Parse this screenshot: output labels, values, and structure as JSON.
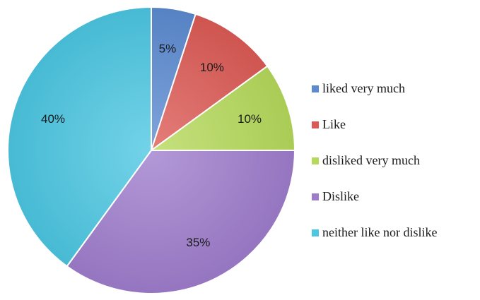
{
  "chart_data": {
    "type": "pie",
    "title": "",
    "start_angle_deg": 90,
    "direction": "clockwise",
    "legend_position": "right",
    "labels": [
      "liked very much",
      "Like",
      "disliked very much",
      "Dislike",
      "neither like nor dislike"
    ],
    "values": [
      5,
      10,
      10,
      35,
      40
    ],
    "value_labels": [
      "5%",
      "10%",
      "10%",
      "35%",
      "40%"
    ],
    "colors": [
      "#5b8ad1",
      "#dc5a55",
      "#b5d95a",
      "#9e7ccc",
      "#4cc6e2"
    ]
  }
}
